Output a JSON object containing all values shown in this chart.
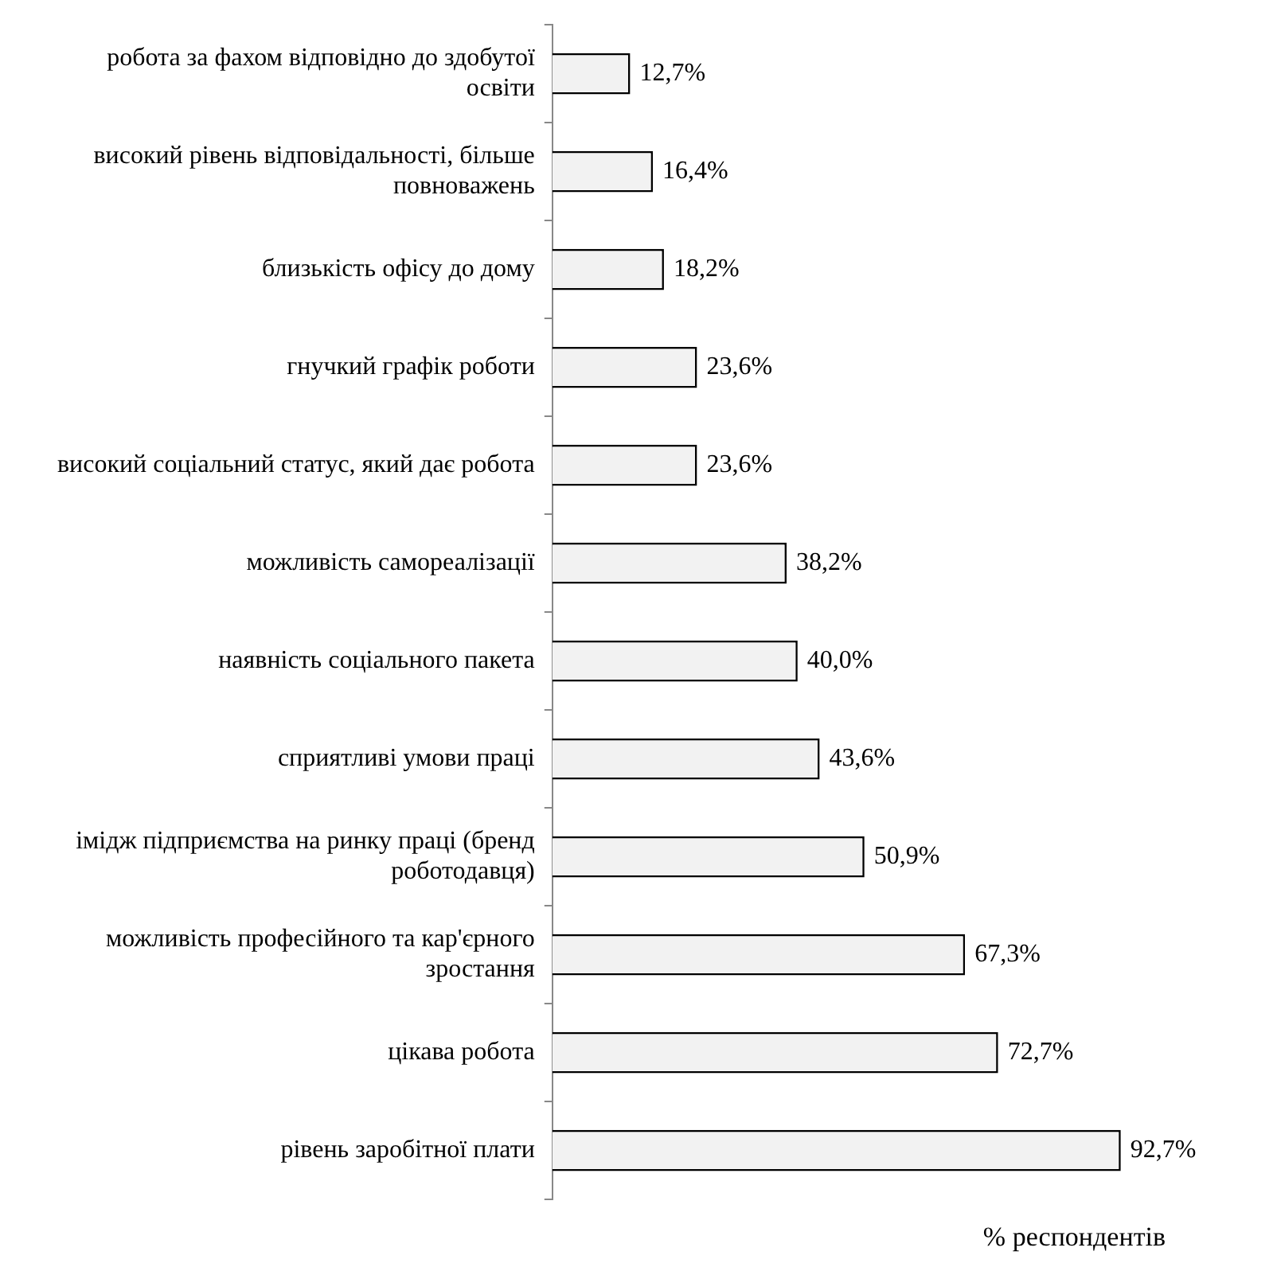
{
  "chart_data": {
    "type": "bar",
    "orientation": "horizontal",
    "xlabel": "% респондентів",
    "categories": [
      "робота за фахом відповідно до здобутої освіти",
      "високий рівень відповідальності, більше повноважень",
      "близькість офісу до дому",
      "гнучкий графік роботи",
      "високий соціальний статус, який дає робота",
      "можливість самореалізації",
      "наявність соціального пакета",
      "сприятливі умови праці",
      "імідж підприємства на ринку праці (бренд роботодавця)",
      "можливість професійного та кар'єрного зростання",
      "цікава робота",
      "рівень заробітної плати"
    ],
    "values": [
      12.7,
      16.4,
      18.2,
      23.6,
      23.6,
      38.2,
      40.0,
      43.6,
      50.9,
      67.3,
      72.7,
      92.7
    ],
    "value_labels": [
      "12,7%",
      "16,4%",
      "18,2%",
      "23,6%",
      "23,6%",
      "38,2%",
      "40,0%",
      "43,6%",
      "50,9%",
      "67,3%",
      "72,7%",
      "92,7%"
    ],
    "color": "#f2f2f2",
    "tick_labels": "y",
    "grid": false,
    "legend": false
  }
}
